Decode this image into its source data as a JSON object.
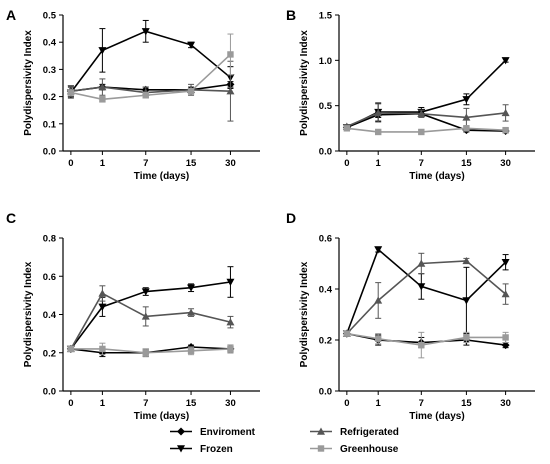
{
  "legend": [
    {
      "name": "Enviroment",
      "marker": "diamond",
      "color": "#000000"
    },
    {
      "name": "Frozen",
      "marker": "triangle-down",
      "color": "#000000"
    },
    {
      "name": "Refrigerated",
      "marker": "triangle-up",
      "color": "#555555"
    },
    {
      "name": "Greenhouse",
      "marker": "square",
      "color": "#9a9a9a"
    }
  ],
  "chart_data": [
    {
      "type": "line",
      "panel_label": "A",
      "xlabel": "Time (days)",
      "ylabel": "Polydispersivity Index",
      "categories": [
        "0",
        "1",
        "7",
        "15",
        "30"
      ],
      "ylim": [
        0.0,
        0.5
      ],
      "yticks": [
        "0.0",
        "0.1",
        "0.2",
        "0.3",
        "0.4",
        "0.5"
      ],
      "series": [
        {
          "name": "Enviroment",
          "values": [
            0.22,
            0.235,
            0.225,
            0.225,
            0.245
          ],
          "errors": [
            0.02,
            0.01,
            0.01,
            0.01,
            0.01
          ]
        },
        {
          "name": "Frozen",
          "values": [
            0.215,
            0.37,
            0.44,
            0.39,
            0.27
          ],
          "errors": [
            0.02,
            0.08,
            0.04,
            0.01,
            0.04
          ]
        },
        {
          "name": "Refrigerated",
          "values": [
            0.22,
            0.235,
            0.215,
            0.225,
            0.22
          ],
          "errors": [
            0.02,
            0.03,
            0.02,
            0.02,
            0.11
          ]
        },
        {
          "name": "Greenhouse",
          "values": [
            0.215,
            0.19,
            0.205,
            0.22,
            0.355
          ],
          "errors": [
            0.01,
            0.01,
            0.01,
            0.01,
            0.075
          ]
        }
      ]
    },
    {
      "type": "line",
      "panel_label": "B",
      "xlabel": "Time (days)",
      "ylabel": "Polydispersivity Index",
      "categories": [
        "0",
        "1",
        "7",
        "15",
        "30"
      ],
      "ylim": [
        0.0,
        1.5
      ],
      "yticks": [
        "0.0",
        "0.5",
        "1.0",
        "1.5"
      ],
      "series": [
        {
          "name": "Enviroment",
          "values": [
            0.26,
            0.4,
            0.41,
            0.23,
            0.22
          ],
          "errors": [
            0.02,
            0.03,
            0.03,
            0.02,
            0.02
          ]
        },
        {
          "name": "Frozen",
          "values": [
            0.26,
            0.43,
            0.43,
            0.57,
            1.0
          ],
          "errors": [
            0.02,
            0.1,
            0.05,
            0.06,
            0.02
          ]
        },
        {
          "name": "Refrigerated",
          "values": [
            0.27,
            0.42,
            0.41,
            0.37,
            0.42
          ],
          "errors": [
            0.02,
            0.1,
            0.04,
            0.1,
            0.09
          ]
        },
        {
          "name": "Greenhouse",
          "values": [
            0.25,
            0.21,
            0.21,
            0.25,
            0.23
          ],
          "errors": [
            0.02,
            0.02,
            0.02,
            0.03,
            0.02
          ]
        }
      ]
    },
    {
      "type": "line",
      "panel_label": "C",
      "xlabel": "Time (days)",
      "ylabel": "Polydispersivity Index",
      "categories": [
        "0",
        "1",
        "7",
        "15",
        "30"
      ],
      "ylim": [
        0.0,
        0.8
      ],
      "yticks": [
        "0.0",
        "0.2",
        "0.4",
        "0.6",
        "0.8"
      ],
      "series": [
        {
          "name": "Enviroment",
          "values": [
            0.22,
            0.2,
            0.2,
            0.23,
            0.22
          ],
          "errors": [
            0.01,
            0.02,
            0.02,
            0.01,
            0.02
          ]
        },
        {
          "name": "Frozen",
          "values": [
            0.22,
            0.44,
            0.52,
            0.54,
            0.57
          ],
          "errors": [
            0.01,
            0.05,
            0.02,
            0.02,
            0.08
          ]
        },
        {
          "name": "Refrigerated",
          "values": [
            0.22,
            0.51,
            0.39,
            0.41,
            0.36
          ],
          "errors": [
            0.01,
            0.04,
            0.05,
            0.02,
            0.03
          ]
        },
        {
          "name": "Greenhouse",
          "values": [
            0.22,
            0.22,
            0.2,
            0.21,
            0.22
          ],
          "errors": [
            0.01,
            0.03,
            0.02,
            0.02,
            0.02
          ]
        }
      ]
    },
    {
      "type": "line",
      "panel_label": "D",
      "xlabel": "Time (days)",
      "ylabel": "Polydispersivity Index",
      "categories": [
        "0",
        "1",
        "7",
        "15",
        "30"
      ],
      "ylim": [
        0.0,
        0.6
      ],
      "yticks": [
        "0.0",
        "0.2",
        "0.4",
        "0.6"
      ],
      "series": [
        {
          "name": "Enviroment",
          "values": [
            0.225,
            0.2,
            0.19,
            0.2,
            0.18
          ],
          "errors": [
            0.01,
            0.02,
            0.02,
            0.02,
            0.01
          ]
        },
        {
          "name": "Frozen",
          "values": [
            0.225,
            0.555,
            0.41,
            0.355,
            0.505
          ],
          "errors": [
            0.01,
            0.01,
            0.05,
            0.13,
            0.03
          ]
        },
        {
          "name": "Refrigerated",
          "values": [
            0.225,
            0.355,
            0.5,
            0.51,
            0.38
          ],
          "errors": [
            0.01,
            0.07,
            0.04,
            0.01,
            0.04
          ]
        },
        {
          "name": "Greenhouse",
          "values": [
            0.225,
            0.205,
            0.18,
            0.21,
            0.21
          ],
          "errors": [
            0.01,
            0.02,
            0.05,
            0.02,
            0.02
          ]
        }
      ]
    }
  ]
}
